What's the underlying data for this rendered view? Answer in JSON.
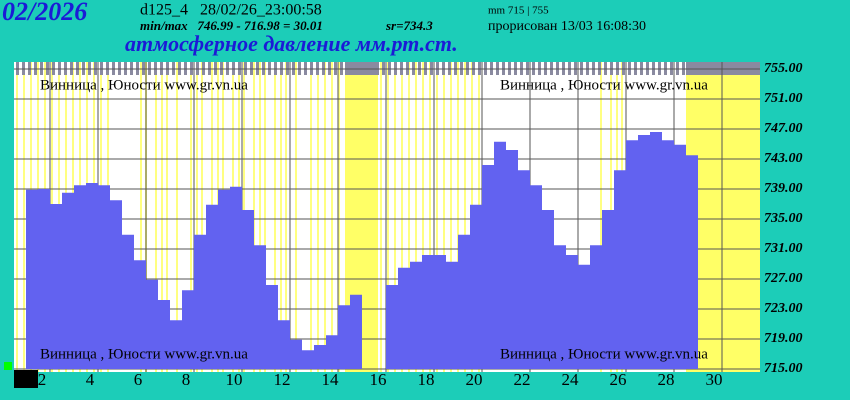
{
  "header": {
    "month": "02/2026",
    "station": "d125_4   28/02/26_23:00:58",
    "minmax": "min/max   746.99 - 716.98 = 30.01",
    "mean": "sr=734.3",
    "range": "mm 715 | 755",
    "drawn": "прорисован 13/03 16:08:30",
    "watermark": "Винница , Юности   www.gr.vn.ua"
  },
  "chart_data": {
    "type": "bar",
    "title": "атмосферное давление мм.рт.ст.",
    "color": "#6262f0",
    "x": [
      1,
      1.5,
      2,
      2.5,
      3,
      3.5,
      4,
      4.5,
      5,
      5.5,
      6,
      6.5,
      7,
      7.5,
      8,
      8.5,
      9,
      9.5,
      10,
      10.5,
      11,
      11.5,
      12,
      12.5,
      13,
      13.5,
      14,
      14.5,
      15,
      15.5,
      16,
      16.5,
      17,
      17.5,
      18,
      18.5,
      19,
      19.5,
      20,
      20.5,
      21,
      21.5,
      22,
      22.5,
      23,
      23.5,
      24,
      24.5,
      25,
      25.5,
      26,
      26.5,
      27,
      27.5,
      28,
      28.5
    ],
    "values": [
      738.9,
      739,
      737,
      738.5,
      739.5,
      739.8,
      739.5,
      737.5,
      732.9,
      729.5,
      726.9,
      724.2,
      721.5,
      725.5,
      732.9,
      736.9,
      738.9,
      739.3,
      736.2,
      731.5,
      726.2,
      721.5,
      718.9,
      717.5,
      718.2,
      719.5,
      723.5,
      724.9,
      null,
      null,
      726.2,
      728.5,
      729.3,
      730.2,
      730.2,
      729.3,
      732.9,
      736.9,
      742.2,
      745.3,
      744.2,
      741.5,
      739.5,
      736.2,
      731.5,
      730.2,
      728.9,
      731.5,
      736.2,
      741.5,
      745.5,
      746.2,
      746.6,
      745.5,
      744.9,
      743.5
    ],
    "xlim": [
      0.5,
      31.5
    ],
    "xticks": [
      2,
      4,
      6,
      8,
      10,
      12,
      14,
      16,
      18,
      20,
      22,
      24,
      26,
      28,
      30
    ],
    "ylim": [
      715,
      755
    ],
    "yticks": [
      {
        "value": 755,
        "label": "755.00"
      },
      {
        "value": 751,
        "label": "751.00"
      },
      {
        "value": 747,
        "label": "747.00"
      },
      {
        "value": 743,
        "label": "743.00"
      },
      {
        "value": 739,
        "label": "739.00"
      },
      {
        "value": 735,
        "label": "735.00"
      },
      {
        "value": 731,
        "label": "731.00"
      },
      {
        "value": 727,
        "label": "727.00"
      },
      {
        "value": 723,
        "label": "723.00"
      },
      {
        "value": 719,
        "label": "719.00"
      },
      {
        "value": 715,
        "label": "715.00"
      }
    ],
    "grid": true
  }
}
